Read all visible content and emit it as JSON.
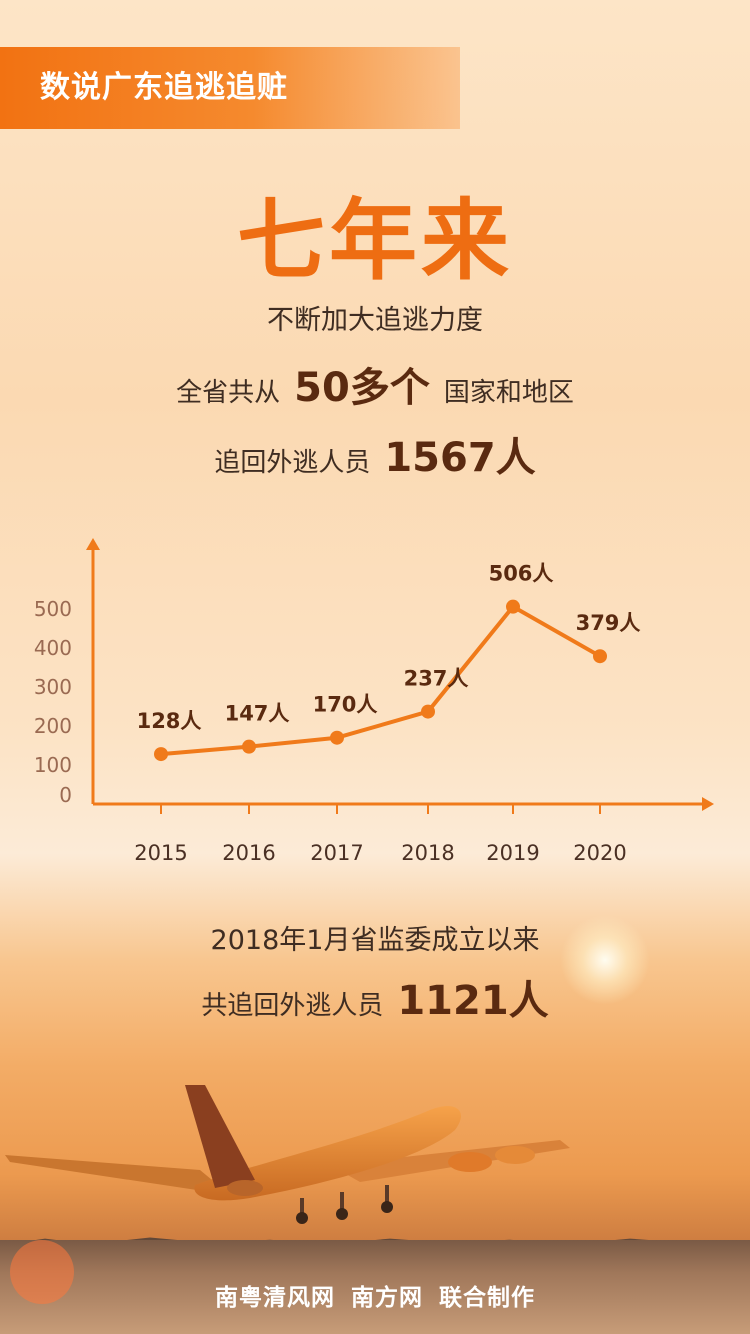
{
  "banner": {
    "title": "数说广东追逃追赃"
  },
  "headline": "七年来",
  "subhead": "不断加大追逃力度",
  "stat1": {
    "prefix": "全省共从",
    "value": "50多个",
    "suffix": "国家和地区"
  },
  "stat2": {
    "prefix": "追回外逃人员",
    "value": "1567人"
  },
  "stat3": {
    "line1": "2018年1月省监委成立以来",
    "prefix": "共追回外逃人员",
    "value": "1121人"
  },
  "footer": {
    "org1": "南粤清风网",
    "org2": "南方网",
    "suffix": "联合制作"
  },
  "colors": {
    "accent": "#f07a1a",
    "headline": "#ee6d12",
    "dark_text": "#3f2d22",
    "value_text": "#5a2a10",
    "tick_text": "#9a6a52"
  },
  "chart_data": {
    "type": "line",
    "x": [
      "2015",
      "2016",
      "2017",
      "2018",
      "2019",
      "2020"
    ],
    "series": [
      {
        "values": [
          128,
          147,
          170,
          237,
          506,
          379
        ],
        "labels": [
          "128人",
          "147人",
          "170人",
          "237人",
          "506人",
          "379人"
        ]
      }
    ],
    "y_ticks": [
      "0",
      "100",
      "200",
      "300",
      "400",
      "500"
    ],
    "ylim": [
      0,
      600
    ],
    "grid": false,
    "legend": "none"
  }
}
